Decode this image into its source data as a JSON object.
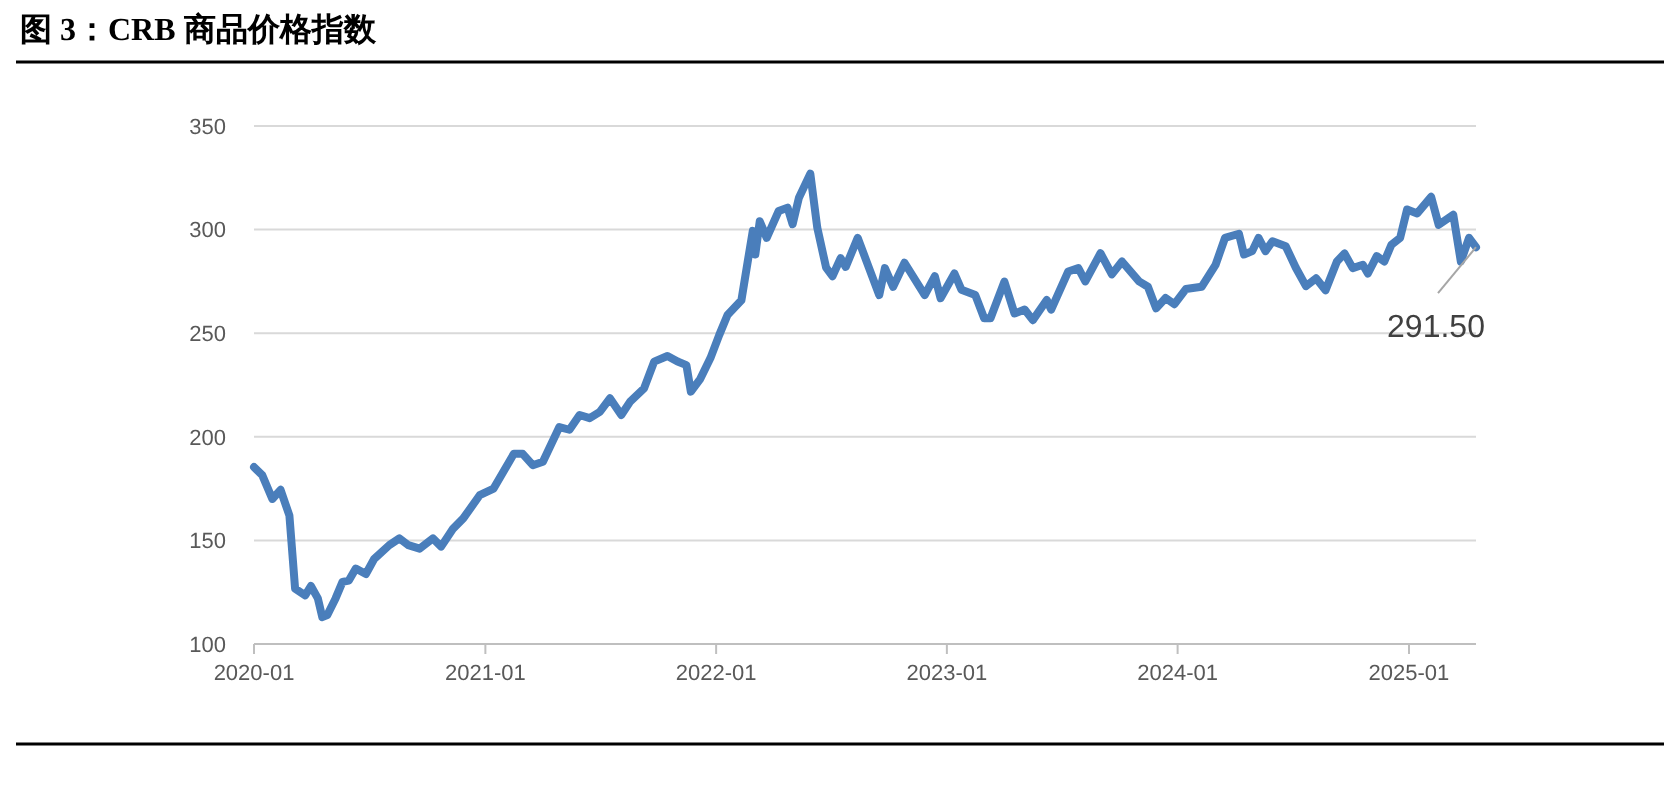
{
  "chart_data": {
    "type": "line",
    "title": "图 3：CRB 商品价格指数",
    "x": [
      "2020-01-01",
      "2020-01-14",
      "2020-01-30",
      "2020-02-12",
      "2020-02-26",
      "2020-03-06",
      "2020-03-22",
      "2020-03-31",
      "2020-04-11",
      "2020-04-18",
      "2020-04-26",
      "2020-05-09",
      "2020-05-20",
      "2020-05-30",
      "2020-06-10",
      "2020-06-26",
      "2020-07-09",
      "2020-08-02",
      "2020-08-18",
      "2020-09-01",
      "2020-09-19",
      "2020-10-10",
      "2020-10-23",
      "2020-11-11",
      "2020-11-27",
      "2020-12-23",
      "2021-01-14",
      "2021-02-15",
      "2021-03-01",
      "2021-03-17",
      "2021-04-02",
      "2021-04-28",
      "2021-05-14",
      "2021-05-30",
      "2021-06-15",
      "2021-07-01",
      "2021-07-17",
      "2021-08-04",
      "2021-08-18",
      "2021-09-09",
      "2021-09-25",
      "2021-10-16",
      "2021-11-01",
      "2021-11-15",
      "2021-11-22",
      "2021-12-07",
      "2021-12-23",
      "2022-01-06",
      "2022-01-19",
      "2022-02-10",
      "2022-02-20",
      "2022-02-28",
      "2022-03-04",
      "2022-03-11",
      "2022-03-22",
      "2022-04-10",
      "2022-04-24",
      "2022-05-02",
      "2022-05-12",
      "2022-05-30",
      "2022-06-10",
      "2022-06-24",
      "2022-07-04",
      "2022-07-17",
      "2022-07-25",
      "2022-08-13",
      "2022-08-29",
      "2022-09-16",
      "2022-09-25",
      "2022-10-08",
      "2022-10-26",
      "2022-11-27",
      "2022-12-13",
      "2022-12-22",
      "2023-01-13",
      "2023-01-24",
      "2023-02-15",
      "2023-03-01",
      "2023-03-11",
      "2023-04-02",
      "2023-04-18",
      "2023-05-04",
      "2023-05-17",
      "2023-06-08",
      "2023-06-15",
      "2023-07-12",
      "2023-07-28",
      "2023-08-08",
      "2023-09-01",
      "2023-09-19",
      "2023-10-05",
      "2023-11-01",
      "2023-11-15",
      "2023-11-28",
      "2023-12-13",
      "2023-12-27",
      "2024-01-14",
      "2024-02-08",
      "2024-03-01",
      "2024-03-16",
      "2024-04-07",
      "2024-04-15",
      "2024-04-28",
      "2024-05-08",
      "2024-05-19",
      "2024-05-30",
      "2024-06-20",
      "2024-07-06",
      "2024-07-22",
      "2024-08-07",
      "2024-08-22",
      "2024-09-09",
      "2024-09-21",
      "2024-10-04",
      "2024-10-20",
      "2024-10-28",
      "2024-11-11",
      "2024-11-23",
      "2024-12-04",
      "2024-12-18",
      "2024-12-29",
      "2025-01-14",
      "2025-02-05",
      "2025-02-17",
      "2025-03-12",
      "2025-03-24",
      "2025-04-06",
      "2025-04-17"
    ],
    "series": [
      {
        "color": "#4a7ebb",
        "values": [
          185.4,
          181.5,
          170,
          174.4,
          162,
          126.7,
          123.5,
          128,
          122,
          113,
          114,
          122,
          130,
          130.6,
          136.4,
          133.8,
          141,
          147.7,
          151,
          147.7,
          146,
          151,
          147,
          155.7,
          160.6,
          171.8,
          175,
          191.8,
          191.8,
          186.3,
          188,
          204.7,
          203.4,
          210.5,
          209,
          212,
          218.6,
          210.5,
          217,
          223.4,
          236.3,
          239,
          236.3,
          234.6,
          221.8,
          228,
          238,
          249.2,
          258.8,
          265.9,
          284.6,
          299.4,
          288,
          304,
          296,
          309,
          310.6,
          302.6,
          315.4,
          327,
          300.9,
          281.6,
          277.5,
          286.2,
          282,
          296,
          283,
          268.4,
          281.4,
          272.4,
          284,
          268.4,
          277.5,
          266.9,
          278.8,
          271,
          268.4,
          257.2,
          257.2,
          274.9,
          259.5,
          261.4,
          256.3,
          266,
          261.4,
          279.8,
          281.4,
          275,
          288.6,
          278.4,
          284.6,
          275,
          272.4,
          262,
          267,
          264,
          271.3,
          272.4,
          283,
          296,
          298,
          288,
          289.6,
          296,
          289.6,
          294.4,
          292,
          281.6,
          272.7,
          276.5,
          270.7,
          284.6,
          288.5,
          281.4,
          283,
          278.8,
          287.2,
          284.6,
          292.6,
          296,
          309.7,
          307.8,
          315.8,
          302.3,
          307.2,
          284.6,
          296,
          291.5
        ]
      }
    ],
    "xlim": [
      "2020-01-01",
      "2025-04-17"
    ],
    "xticks": [
      "2020-01",
      "2021-01",
      "2022-01",
      "2023-01",
      "2024-01",
      "2025-01"
    ],
    "ylim": [
      100,
      350
    ],
    "yticks": [
      100,
      150,
      200,
      250,
      300,
      350
    ],
    "grid": "y",
    "marker": "none",
    "line_style": "solid",
    "annotations": [
      {
        "text": "291.50",
        "x": "2025-04-17",
        "y": 291.5
      }
    ]
  }
}
